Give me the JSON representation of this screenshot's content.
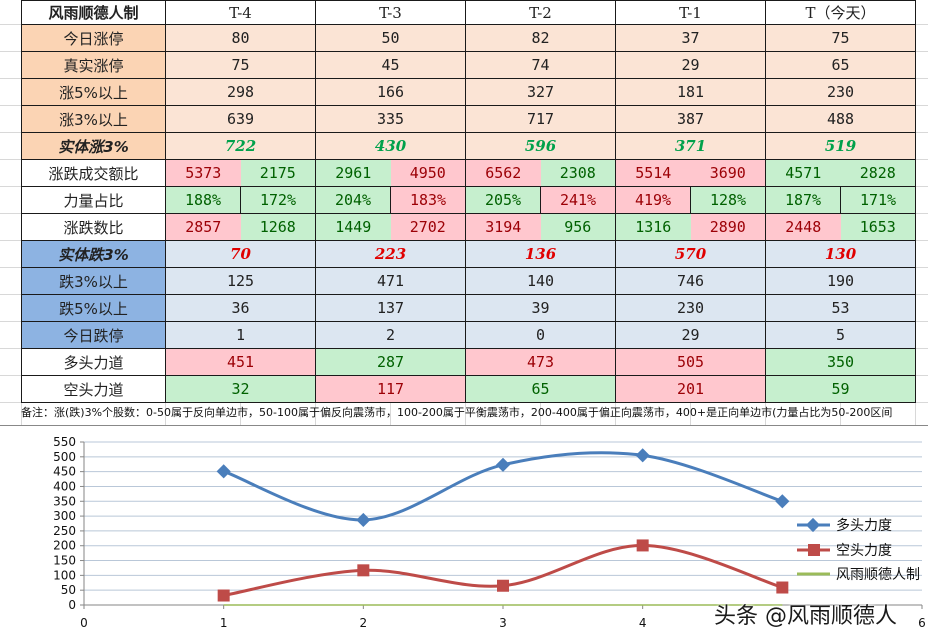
{
  "table": {
    "title": "风雨顺德人制",
    "columns": [
      "T-4",
      "T-3",
      "T-2",
      "T-1",
      "T（今天）"
    ],
    "rise_section": {
      "rows": [
        {
          "label": "今日涨停",
          "values": [
            "80",
            "50",
            "82",
            "37",
            "75"
          ]
        },
        {
          "label": "真实涨停",
          "values": [
            "75",
            "45",
            "74",
            "29",
            "65"
          ]
        },
        {
          "label": "涨5%以上",
          "values": [
            "298",
            "166",
            "327",
            "181",
            "230"
          ]
        },
        {
          "label": "涨3%以上",
          "values": [
            "639",
            "335",
            "717",
            "387",
            "488"
          ]
        }
      ],
      "solid_rise": {
        "label": "实体涨3%",
        "values": [
          "722",
          "430",
          "596",
          "371",
          "519"
        ]
      }
    },
    "pair_rows": [
      {
        "label": "涨跌成交额比",
        "pairs": [
          [
            "5373",
            "2175"
          ],
          [
            "2961",
            "4950"
          ],
          [
            "6562",
            "2308"
          ],
          [
            "5514",
            "3690"
          ],
          [
            "4571",
            "2828"
          ]
        ],
        "colors": [
          [
            "red",
            "green"
          ],
          [
            "green",
            "red"
          ],
          [
            "red",
            "green"
          ],
          [
            "red",
            "red"
          ],
          [
            "green",
            "green"
          ]
        ]
      },
      {
        "label": "力量占比",
        "pairs": [
          [
            "188%",
            "172%"
          ],
          [
            "204%",
            "183%"
          ],
          [
            "205%",
            "241%"
          ],
          [
            "419%",
            "128%"
          ],
          [
            "187%",
            "171%"
          ]
        ],
        "colors": [
          [
            "green",
            "green"
          ],
          [
            "green",
            "red"
          ],
          [
            "green",
            "red"
          ],
          [
            "red",
            "green"
          ],
          [
            "green",
            "green"
          ]
        ]
      },
      {
        "label": "涨跌数比",
        "pairs": [
          [
            "2857",
            "1268"
          ],
          [
            "1449",
            "2702"
          ],
          [
            "3194",
            "956"
          ],
          [
            "1316",
            "2890"
          ],
          [
            "2448",
            "1653"
          ]
        ],
        "colors": [
          [
            "red",
            "green"
          ],
          [
            "green",
            "red"
          ],
          [
            "red",
            "green"
          ],
          [
            "green",
            "red"
          ],
          [
            "red",
            "green"
          ]
        ]
      }
    ],
    "fall_section": {
      "solid_fall": {
        "label": "实体跌3%",
        "values": [
          "70",
          "223",
          "136",
          "570",
          "130"
        ]
      },
      "rows": [
        {
          "label": "跌3%以上",
          "values": [
            "125",
            "471",
            "140",
            "746",
            "190"
          ]
        },
        {
          "label": "跌5%以上",
          "values": [
            "36",
            "137",
            "39",
            "230",
            "53"
          ]
        },
        {
          "label": "今日跌停",
          "values": [
            "1",
            "2",
            "0",
            "29",
            "5"
          ]
        }
      ]
    },
    "force_rows": [
      {
        "label": "多头力道",
        "values": [
          "451",
          "287",
          "473",
          "505",
          "350"
        ],
        "colors": [
          "red",
          "green",
          "red",
          "red",
          "green"
        ]
      },
      {
        "label": "空头力道",
        "values": [
          "32",
          "117",
          "65",
          "201",
          "59"
        ],
        "colors": [
          "green",
          "red",
          "green",
          "red",
          "green"
        ]
      }
    ]
  },
  "note": "备注：涨(跌)3%个股数：0-50属于反向单边市，50-100属于偏反向震荡市，100-200属于平衡震荡市，200-400属于偏正向震荡市，400+是正向单边市(力量占比为50-200区间",
  "watermark": "头条 @风雨顺德人",
  "colors": {
    "title_green": "#92d050",
    "peach": "#fbe4d5",
    "blue_header": "#8db3e2",
    "blue_light": "#dce6f1",
    "cell_red_bg": "#ffc7ce",
    "cell_red_text": "#9c0006",
    "cell_green_bg": "#c6efce",
    "cell_green_text": "#006100",
    "series_bull": "#4a7ebb",
    "series_bear": "#be4b48",
    "series_title": "#9bbb59"
  },
  "chart_data": {
    "type": "line",
    "title": "",
    "xlabel": "",
    "ylabel": "",
    "x": [
      1,
      2,
      3,
      4,
      5
    ],
    "xlim": [
      0,
      6
    ],
    "ylim": [
      0,
      550
    ],
    "yticks": [
      0,
      50,
      100,
      150,
      200,
      250,
      300,
      350,
      400,
      450,
      500,
      550
    ],
    "xticks": [
      0,
      1,
      2,
      3,
      4,
      6
    ],
    "grid": true,
    "smooth": true,
    "legend_position": "right",
    "series": [
      {
        "name": "多头力度",
        "values": [
          451,
          287,
          473,
          505,
          350
        ],
        "marker": "diamond",
        "color": "#4a7ebb"
      },
      {
        "name": "空头力度",
        "values": [
          32,
          117,
          65,
          201,
          59
        ],
        "marker": "square",
        "color": "#be4b48"
      },
      {
        "name": "风雨顺德人制",
        "values": [
          0,
          0,
          0,
          0,
          0
        ],
        "marker": "none",
        "color": "#9bbb59"
      }
    ]
  }
}
